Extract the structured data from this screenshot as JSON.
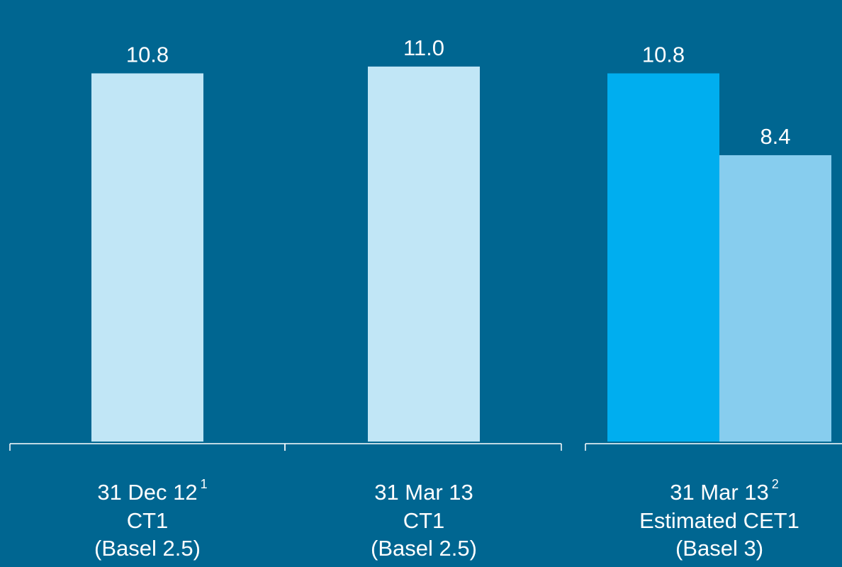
{
  "colors": {
    "background": "#006691",
    "bar_light": "#c1e6f6",
    "bar_bright": "#00aeef",
    "bar_mid": "#87cdee",
    "text": "#ffffff"
  },
  "chart_data": {
    "type": "bar",
    "title": "",
    "xlabel": "",
    "ylabel": "",
    "ylim": [
      0,
      12.6
    ],
    "grid": false,
    "legend": "none",
    "groups": [
      {
        "category_lines": [
          "31 Dec 12",
          "CT1",
          "(Basel 2.5)"
        ],
        "footnote": "1",
        "bars": [
          {
            "value": 10.8,
            "label": "10.8",
            "color_key": "bar_light"
          }
        ]
      },
      {
        "category_lines": [
          "31 Mar 13",
          "CT1",
          "(Basel 2.5)"
        ],
        "footnote": "",
        "bars": [
          {
            "value": 11.0,
            "label": "11.0",
            "color_key": "bar_light"
          }
        ]
      },
      {
        "category_lines": [
          "31 Mar 13",
          "Estimated CET1",
          "(Basel 3)"
        ],
        "footnote": "2",
        "bars": [
          {
            "value": 10.8,
            "label": "10.8",
            "color_key": "bar_bright"
          },
          {
            "value": 8.4,
            "label": "8.4",
            "color_key": "bar_mid"
          }
        ]
      }
    ]
  }
}
